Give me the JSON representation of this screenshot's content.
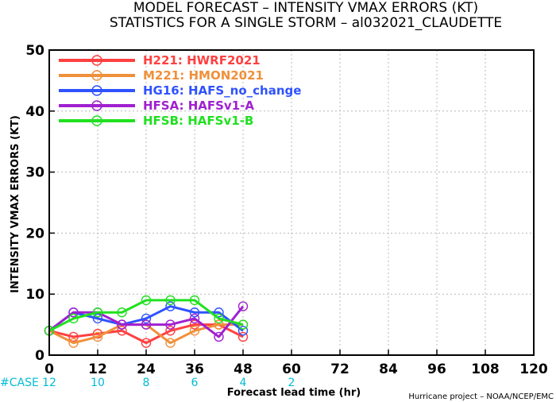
{
  "chart_data": {
    "type": "line",
    "title": "MODEL FORECAST – INTENSITY VMAX ERRORS (KT)",
    "subtitle": "STATISTICS FOR A SINGLE STORM – al032021_CLAUDETTE",
    "xlabel": "Forecast lead time (hr)",
    "ylabel": "INTENSITY VMAX ERRORS (KT)",
    "xlim": [
      0,
      120
    ],
    "ylim": [
      0,
      50
    ],
    "x_ticks": [
      0,
      12,
      24,
      36,
      48,
      60,
      72,
      84,
      96,
      108,
      120
    ],
    "y_ticks": [
      0,
      10,
      20,
      30,
      40,
      50
    ],
    "grid": true,
    "legend_position": "top-left",
    "x": [
      0,
      6,
      12,
      18,
      24,
      30,
      36,
      42,
      48
    ],
    "series": [
      {
        "name": "H221: HWRF2021",
        "color": "#ff4040",
        "values": [
          4,
          3,
          3.5,
          4,
          2,
          4,
          5,
          5,
          3
        ]
      },
      {
        "name": "M221: HMON2021",
        "color": "#f0903a",
        "values": [
          4,
          2,
          3,
          5,
          5,
          2,
          4,
          5,
          5
        ]
      },
      {
        "name": "HG16: HAFS_no_change",
        "color": "#2f52ff",
        "values": [
          4,
          7,
          6,
          5,
          6,
          8,
          7,
          7,
          4
        ]
      },
      {
        "name": "HFSA: HAFSv1-A",
        "color": "#a020d0",
        "values": [
          4,
          7,
          7,
          5,
          5,
          5,
          6,
          3,
          8
        ]
      },
      {
        "name": "HFSB: HAFSv1-B",
        "color": "#20e020",
        "values": [
          4,
          6,
          7,
          7,
          9,
          9,
          9,
          6,
          5
        ]
      }
    ],
    "case_label": "#CASE",
    "case_counts": [
      {
        "x": 0,
        "n": "12"
      },
      {
        "x": 12,
        "n": "10"
      },
      {
        "x": 24,
        "n": "8"
      },
      {
        "x": 36,
        "n": "6"
      },
      {
        "x": 48,
        "n": "4"
      },
      {
        "x": 60,
        "n": "2"
      }
    ],
    "credit": "Hurricane project – NOAA/NCEP/EMC"
  }
}
